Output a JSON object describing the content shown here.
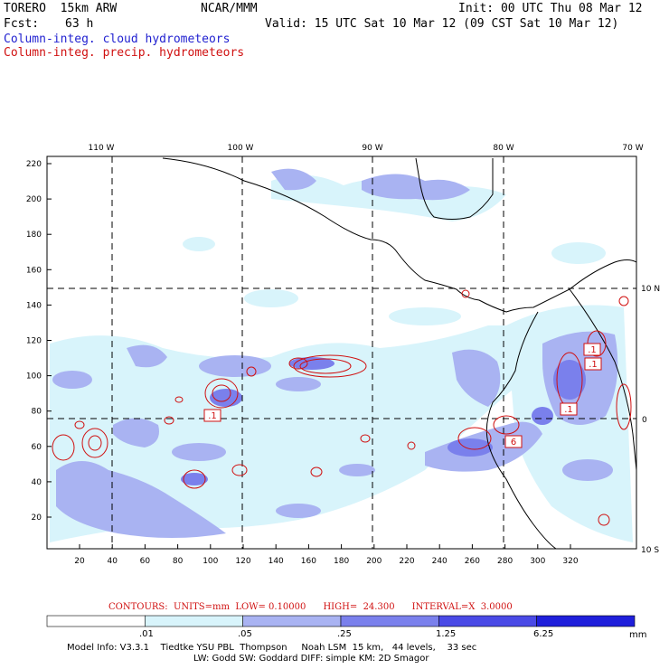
{
  "header": {
    "model": "TORERO  15km ARW",
    "org": "NCAR/MMM",
    "init": "Init: 00 UTC Thu 08 Mar 12",
    "fcst_label": "Fcst:",
    "fcst_value": "63 h",
    "valid": "Valid: 15 UTC Sat 10 Mar 12 (09 CST Sat 10 Mar 12)",
    "field1": "Column-integ. cloud hydrometeors",
    "field2": "Column-integ. precip. hydrometeors"
  },
  "map": {
    "lon_labels": [
      "110 W",
      "100 W",
      "90 W",
      "80 W",
      "70 W"
    ],
    "lat_labels": [
      "10 N",
      "0",
      "10 S"
    ],
    "y_ticks": [
      "220",
      "200",
      "180",
      "160",
      "140",
      "120",
      "100",
      "80",
      "60",
      "40",
      "20"
    ],
    "x_ticks": [
      "20",
      "40",
      "60",
      "80",
      "100",
      "120",
      "140",
      "160",
      "180",
      "200",
      "220",
      "240",
      "260",
      "280",
      "300",
      "320"
    ],
    "contour_box_labels": [
      ".1",
      ".1",
      ".1",
      "6",
      ".1"
    ]
  },
  "colorbar": {
    "levels": [
      ".01",
      ".05",
      ".25",
      "1.25",
      "6.25"
    ],
    "unit": "mm",
    "colors": [
      "#ffffff",
      "#d8f4fb",
      "#a9b3f2",
      "#7a80ec",
      "#4a4ae6",
      "#1f1fdb"
    ]
  },
  "contour_info": {
    "text": "CONTOURS:  UNITS=mm  LOW= 0.10000      HIGH=  24.300      INTERVAL=X  3.0000"
  },
  "footer": {
    "line1": "Model Info: V3.3.1    Tiedtke YSU PBL  Thompson     Noah LSM  15 km,   44 levels,    33 sec",
    "line2": "LW: Godd SW: Goddard DIFF: simple KM: 2D Smagor"
  }
}
